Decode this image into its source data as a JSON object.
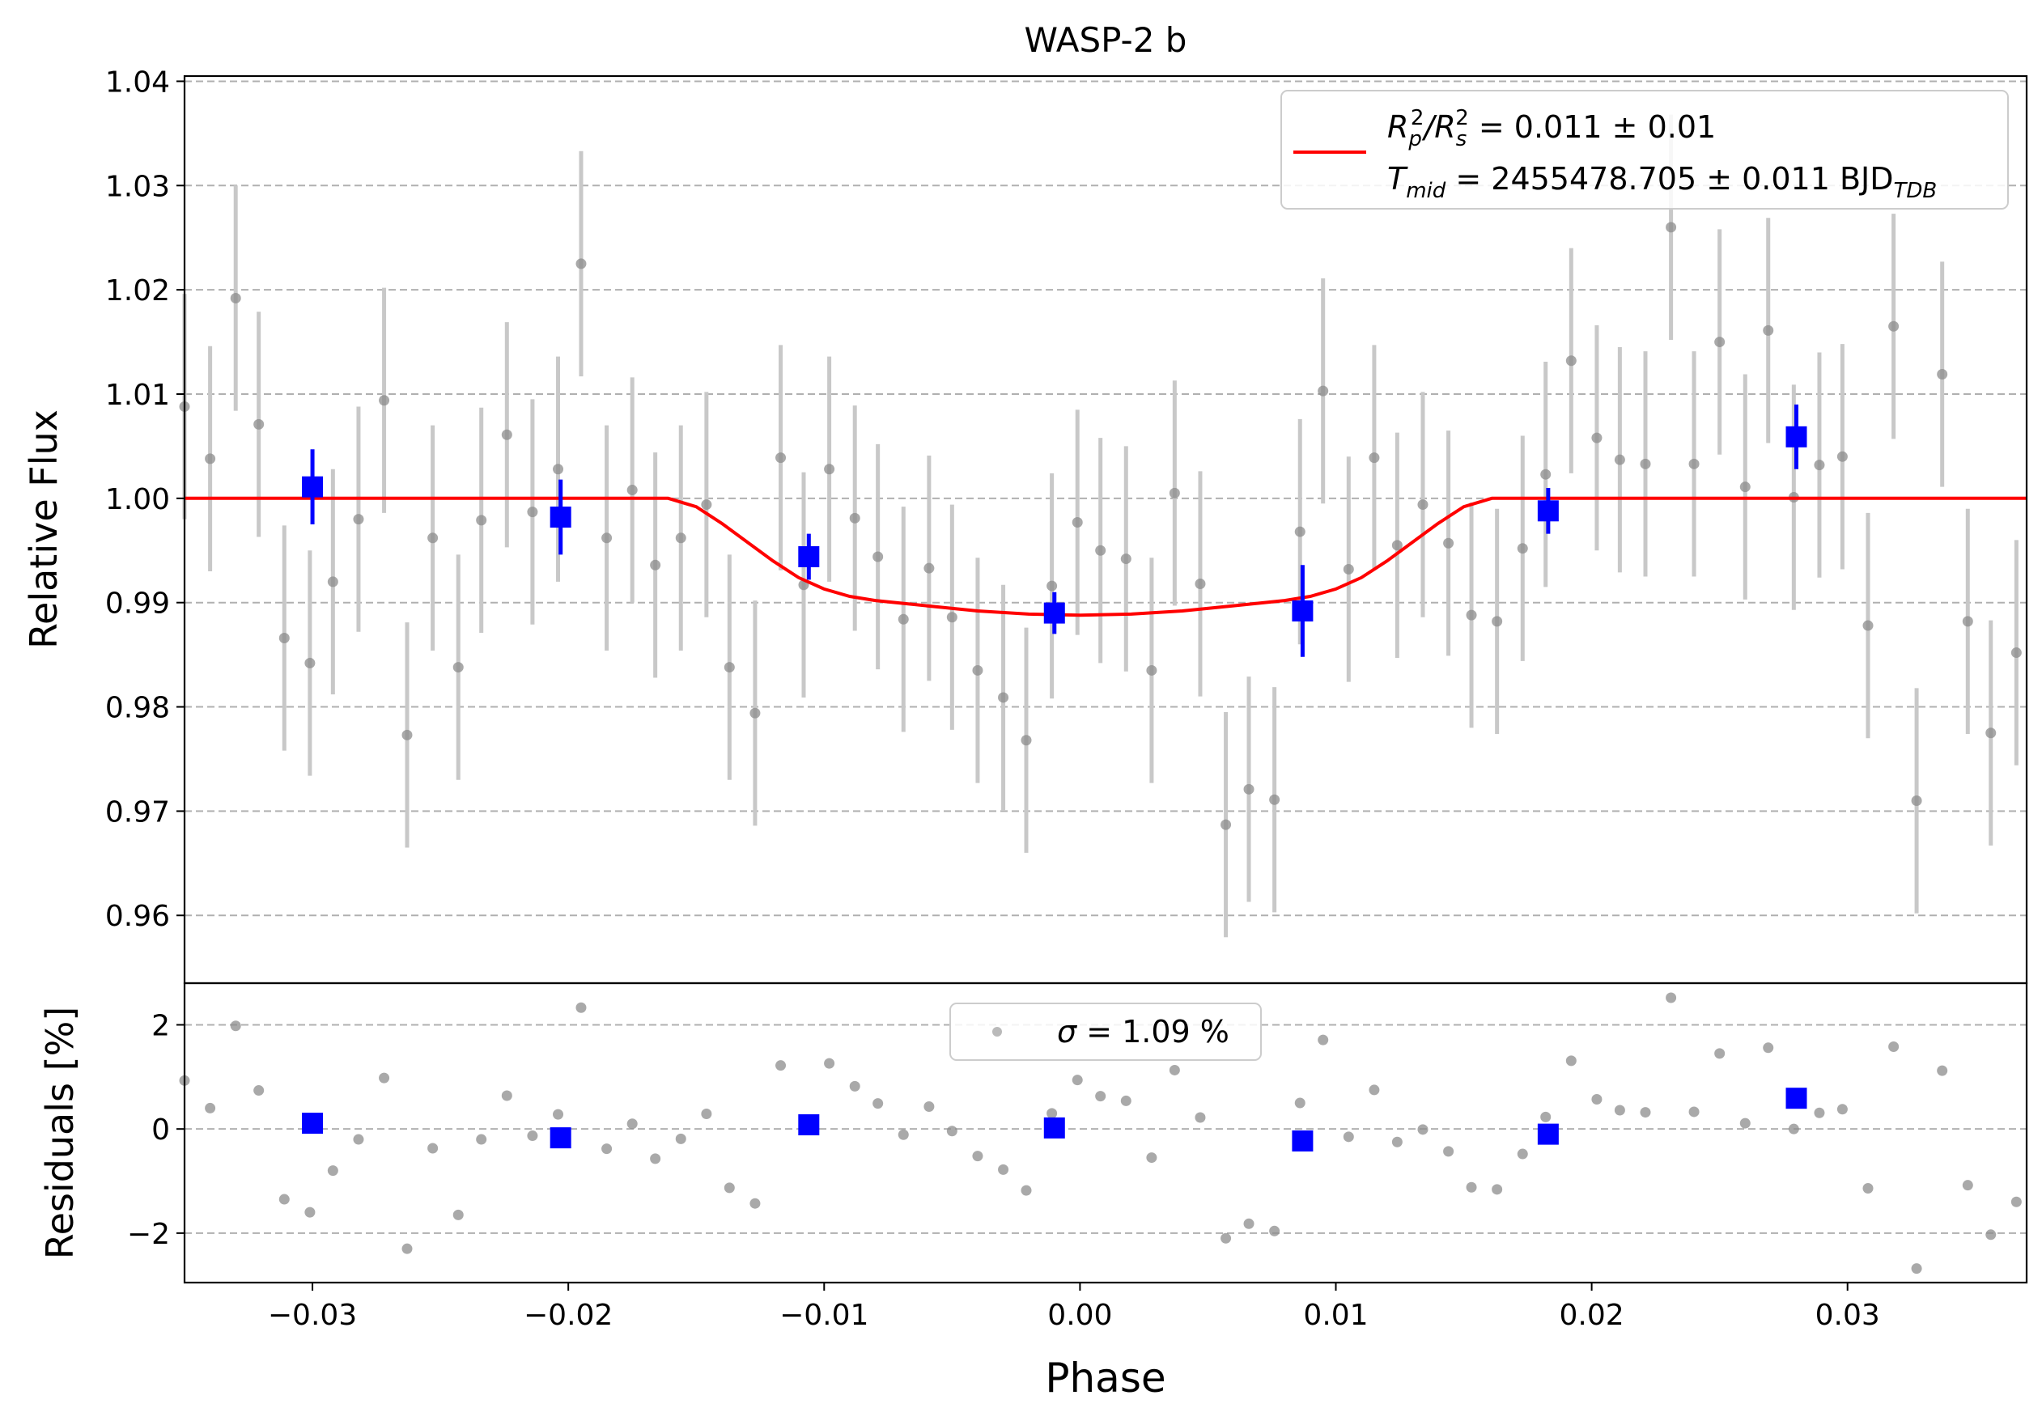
{
  "chart_data": [
    {
      "panel": "main",
      "type": "scatter",
      "title": "WASP-2 b",
      "xlabel": "Phase",
      "ylabel": "Relative Flux",
      "xlim": [
        -0.035,
        0.037
      ],
      "ylim": [
        0.9535,
        1.0405
      ],
      "xticks": [
        -0.03,
        -0.02,
        -0.01,
        0.0,
        0.01,
        0.02,
        0.03
      ],
      "xtick_labels": [
        "−0.03",
        "−0.02",
        "−0.01",
        "0.00",
        "0.01",
        "0.02",
        "0.03"
      ],
      "yticks": [
        0.96,
        0.97,
        0.98,
        0.99,
        1.0,
        1.01,
        1.02,
        1.03,
        1.04
      ],
      "ytick_labels": [
        "0.96",
        "0.97",
        "0.98",
        "0.99",
        "1.00",
        "1.01",
        "1.02",
        "1.03",
        "1.04"
      ],
      "grid": "y-dashed",
      "legend_position": "top-right",
      "colors": {
        "data": "#8c8c8c",
        "errorbar": "#c8c8c8",
        "binned": "#0000ff",
        "model": "#ff0000"
      },
      "legend": {
        "line1": {
          "prefix": "R",
          "sub1": "p",
          "sup1": "2",
          "mid": "/R",
          "sub2": "s",
          "sup2": "2",
          "value": " = 0.011 ± 0.01"
        },
        "line2": {
          "prefix": "T",
          "sub1": "mid",
          "value": " = 2455478.705 ± 0.011 BJD",
          "sub2": "TDB"
        }
      },
      "data": {
        "x": [
          -0.035,
          -0.034,
          -0.033,
          -0.0321,
          -0.0311,
          -0.0301,
          -0.0292,
          -0.0282,
          -0.0272,
          -0.0263,
          -0.0253,
          -0.0243,
          -0.0234,
          -0.0224,
          -0.0214,
          -0.0204,
          -0.0195,
          -0.0185,
          -0.0175,
          -0.0166,
          -0.0156,
          -0.0146,
          -0.0137,
          -0.0127,
          -0.0117,
          -0.0108,
          -0.0098,
          -0.0088,
          -0.0079,
          -0.0069,
          -0.0059,
          -0.005,
          -0.004,
          -0.003,
          -0.0021,
          -0.0011,
          -0.0001,
          0.0008,
          0.0018,
          0.0028,
          0.0037,
          0.0047,
          0.0057,
          0.0066,
          0.0076,
          0.0086,
          0.0095,
          0.0105,
          0.0115,
          0.0124,
          0.0134,
          0.0144,
          0.0153,
          0.0163,
          0.0173,
          0.0182,
          0.0192,
          0.0202,
          0.0211,
          0.0221,
          0.0231,
          0.024,
          0.025,
          0.026,
          0.0269,
          0.0279,
          0.0289,
          0.0298,
          0.0308,
          0.0318,
          0.0327,
          0.0337,
          0.0347,
          0.0356,
          0.0366
        ],
        "y": [
          1.0088,
          1.0038,
          1.0192,
          1.0071,
          0.9866,
          0.9842,
          0.992,
          0.998,
          1.0094,
          0.9773,
          0.9962,
          0.9838,
          0.9979,
          1.0061,
          0.9987,
          1.0028,
          1.0225,
          0.9962,
          1.0008,
          0.9936,
          0.9962,
          0.9994,
          0.9838,
          0.9794,
          1.0039,
          0.9917,
          1.0028,
          0.9981,
          0.9944,
          0.9884,
          0.9933,
          0.9886,
          0.9835,
          0.9809,
          0.9768,
          0.9916,
          0.9977,
          0.995,
          0.9942,
          0.9835,
          1.0005,
          0.9918,
          0.9687,
          0.9721,
          0.9711,
          0.9968,
          1.0103,
          0.9932,
          1.0039,
          0.9955,
          0.9994,
          0.9957,
          0.9888,
          0.9882,
          0.9952,
          1.0023,
          1.0132,
          1.0058,
          1.0037,
          1.0033,
          1.026,
          1.0033,
          1.015,
          1.0011,
          1.0161,
          1.0001,
          1.0032,
          1.004,
          0.9878,
          1.0165,
          0.971,
          1.0119,
          0.9882,
          0.9775,
          0.9852
        ],
        "yerr": 0.0108
      },
      "binned": {
        "x": [
          -0.03,
          -0.0203,
          -0.0106,
          -0.001,
          0.0087,
          0.0183,
          0.028
        ],
        "y": [
          1.0011,
          0.9982,
          0.9944,
          0.989,
          0.9892,
          0.9988,
          1.0059
        ],
        "yerr": [
          0.0036,
          0.0036,
          0.0022,
          0.002,
          0.0044,
          0.0022,
          0.0031
        ]
      },
      "model": {
        "x": [
          -0.035,
          -0.0161,
          -0.015,
          -0.014,
          -0.013,
          -0.012,
          -0.011,
          -0.01,
          -0.009,
          -0.008,
          -0.006,
          -0.004,
          -0.002,
          0.0,
          0.002,
          0.004,
          0.006,
          0.008,
          0.009,
          0.01,
          0.011,
          0.012,
          0.013,
          0.014,
          0.015,
          0.0161,
          0.037
        ],
        "y": [
          1.0,
          1.0,
          0.9992,
          0.9976,
          0.9958,
          0.994,
          0.9924,
          0.9913,
          0.9906,
          0.9902,
          0.9897,
          0.9892,
          0.9889,
          0.9888,
          0.9889,
          0.9892,
          0.9897,
          0.9902,
          0.9906,
          0.9913,
          0.9924,
          0.994,
          0.9958,
          0.9976,
          0.9992,
          1.0,
          1.0
        ]
      }
    },
    {
      "panel": "residuals",
      "type": "scatter",
      "xlabel": "Phase",
      "ylabel": "Residuals [%]",
      "xlim": [
        -0.035,
        0.037
      ],
      "ylim": [
        -2.95,
        2.8
      ],
      "yticks": [
        -2,
        0,
        2
      ],
      "ytick_labels": [
        "−2",
        "0",
        "2"
      ],
      "grid": "y-dashed",
      "legend_position": "top-center",
      "legend": {
        "symbol": "σ",
        "value": " = 1.09 %"
      },
      "data": {
        "x": [
          -0.035,
          -0.034,
          -0.033,
          -0.0321,
          -0.0311,
          -0.0301,
          -0.0292,
          -0.0282,
          -0.0272,
          -0.0263,
          -0.0253,
          -0.0243,
          -0.0234,
          -0.0224,
          -0.0214,
          -0.0204,
          -0.0195,
          -0.0185,
          -0.0175,
          -0.0166,
          -0.0156,
          -0.0146,
          -0.0137,
          -0.0127,
          -0.0117,
          -0.0108,
          -0.0098,
          -0.0088,
          -0.0079,
          -0.0069,
          -0.0059,
          -0.005,
          -0.004,
          -0.003,
          -0.0021,
          -0.0011,
          -0.0001,
          0.0008,
          0.0018,
          0.0028,
          0.0037,
          0.0047,
          0.0057,
          0.0066,
          0.0076,
          0.0086,
          0.0095,
          0.0105,
          0.0115,
          0.0124,
          0.0134,
          0.0144,
          0.0153,
          0.0163,
          0.0173,
          0.0182,
          0.0192,
          0.0202,
          0.0211,
          0.0221,
          0.0231,
          0.024,
          0.025,
          0.026,
          0.0269,
          0.0279,
          0.0289,
          0.0298,
          0.0308,
          0.0318,
          0.0327,
          0.0337,
          0.0347,
          0.0356,
          0.0366
        ],
        "y": [
          0.93,
          0.4,
          1.98,
          0.74,
          -1.35,
          -1.6,
          -0.8,
          -0.2,
          0.98,
          -2.3,
          -0.37,
          -1.65,
          -0.2,
          0.64,
          -0.13,
          0.28,
          2.33,
          -0.38,
          0.1,
          -0.57,
          -0.19,
          0.29,
          -1.13,
          -1.43,
          1.22,
          0.07,
          1.26,
          0.82,
          0.49,
          -0.11,
          0.43,
          -0.04,
          -0.52,
          -0.78,
          -1.18,
          0.3,
          0.94,
          0.63,
          0.54,
          -0.55,
          1.13,
          0.22,
          -2.1,
          -1.82,
          -1.96,
          0.5,
          1.71,
          -0.15,
          0.75,
          -0.25,
          -0.01,
          -0.43,
          -1.12,
          -1.16,
          -0.48,
          0.23,
          1.31,
          0.57,
          0.36,
          0.32,
          2.52,
          0.33,
          1.45,
          0.11,
          1.56,
          0.0,
          0.31,
          0.38,
          -1.14,
          1.58,
          -2.68,
          1.12,
          -1.08,
          -2.03,
          -1.4
        ]
      },
      "binned": {
        "x": [
          -0.03,
          -0.0203,
          -0.0106,
          -0.001,
          0.0087,
          0.0183,
          0.028
        ],
        "y": [
          0.11,
          -0.17,
          0.08,
          0.02,
          -0.23,
          -0.1,
          0.59
        ]
      }
    }
  ]
}
